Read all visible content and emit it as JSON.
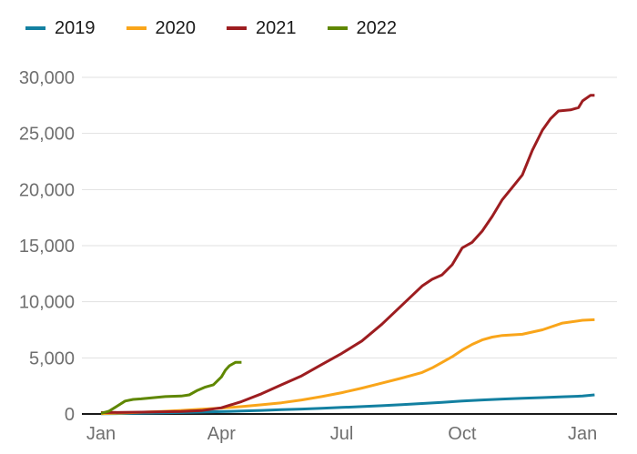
{
  "chart_data": {
    "type": "line",
    "title": "",
    "xlabel": "",
    "ylabel": "",
    "legend_position": "top-left",
    "grid": "horizontal",
    "x_domain": [
      -0.25,
      12.45
    ],
    "y_domain": [
      0,
      30000
    ],
    "x_ticks": [
      {
        "pos": 0,
        "label": "Jan"
      },
      {
        "pos": 3,
        "label": "Apr"
      },
      {
        "pos": 6,
        "label": "Jul"
      },
      {
        "pos": 9,
        "label": "Oct"
      },
      {
        "pos": 12,
        "label": "Jan"
      }
    ],
    "y_ticks": [
      {
        "value": 0,
        "label": "0"
      },
      {
        "value": 5000,
        "label": "5,000"
      },
      {
        "value": 10000,
        "label": "10,000"
      },
      {
        "value": 15000,
        "label": "15,000"
      },
      {
        "value": 20000,
        "label": "20,000"
      },
      {
        "value": 25000,
        "label": "25,000"
      },
      {
        "value": 30000,
        "label": "30,000"
      }
    ],
    "series": [
      {
        "name": "2019",
        "color": "#1380a1",
        "points": [
          [
            0,
            20
          ],
          [
            0.5,
            40
          ],
          [
            1,
            70
          ],
          [
            1.5,
            100
          ],
          [
            2,
            130
          ],
          [
            2.5,
            170
          ],
          [
            3,
            210
          ],
          [
            3.5,
            260
          ],
          [
            4,
            320
          ],
          [
            4.5,
            380
          ],
          [
            5,
            440
          ],
          [
            5.5,
            510
          ],
          [
            6,
            580
          ],
          [
            6.5,
            660
          ],
          [
            7,
            740
          ],
          [
            7.5,
            830
          ],
          [
            8,
            930
          ],
          [
            8.5,
            1040
          ],
          [
            9,
            1150
          ],
          [
            9.5,
            1250
          ],
          [
            10,
            1330
          ],
          [
            10.5,
            1400
          ],
          [
            11,
            1460
          ],
          [
            11.5,
            1530
          ],
          [
            12,
            1600
          ],
          [
            12.3,
            1700
          ]
        ]
      },
      {
        "name": "2020",
        "color": "#f9a51a",
        "points": [
          [
            0,
            30
          ],
          [
            0.5,
            80
          ],
          [
            1,
            150
          ],
          [
            1.5,
            230
          ],
          [
            2,
            320
          ],
          [
            2.5,
            420
          ],
          [
            3,
            530
          ],
          [
            3.5,
            660
          ],
          [
            4,
            820
          ],
          [
            4.5,
            1000
          ],
          [
            5,
            1250
          ],
          [
            5.5,
            1550
          ],
          [
            6,
            1900
          ],
          [
            6.5,
            2300
          ],
          [
            7,
            2750
          ],
          [
            7.5,
            3200
          ],
          [
            8,
            3700
          ],
          [
            8.25,
            4100
          ],
          [
            8.5,
            4600
          ],
          [
            8.75,
            5100
          ],
          [
            9,
            5700
          ],
          [
            9.25,
            6200
          ],
          [
            9.5,
            6600
          ],
          [
            9.75,
            6850
          ],
          [
            10,
            7000
          ],
          [
            10.5,
            7100
          ],
          [
            11,
            7500
          ],
          [
            11.5,
            8100
          ],
          [
            12,
            8350
          ],
          [
            12.3,
            8400
          ]
        ]
      },
      {
        "name": "2021",
        "color": "#9d1d20",
        "points": [
          [
            0,
            120
          ],
          [
            1,
            160
          ],
          [
            2,
            220
          ],
          [
            2.5,
            300
          ],
          [
            3,
            550
          ],
          [
            3.5,
            1100
          ],
          [
            4,
            1800
          ],
          [
            4.5,
            2600
          ],
          [
            5,
            3400
          ],
          [
            5.5,
            4400
          ],
          [
            6,
            5400
          ],
          [
            6.5,
            6500
          ],
          [
            7,
            8000
          ],
          [
            7.5,
            9700
          ],
          [
            8,
            11400
          ],
          [
            8.25,
            12000
          ],
          [
            8.5,
            12400
          ],
          [
            8.75,
            13300
          ],
          [
            9,
            14800
          ],
          [
            9.25,
            15300
          ],
          [
            9.5,
            16300
          ],
          [
            9.75,
            17600
          ],
          [
            10,
            19100
          ],
          [
            10.25,
            20200
          ],
          [
            10.5,
            21300
          ],
          [
            10.75,
            23500
          ],
          [
            11,
            25300
          ],
          [
            11.2,
            26300
          ],
          [
            11.4,
            27000
          ],
          [
            11.7,
            27100
          ],
          [
            11.9,
            27300
          ],
          [
            12,
            27900
          ],
          [
            12.2,
            28400
          ],
          [
            12.3,
            28400
          ]
        ]
      },
      {
        "name": "2022",
        "color": "#5f8700",
        "points": [
          [
            0,
            60
          ],
          [
            0.2,
            250
          ],
          [
            0.4,
            700
          ],
          [
            0.6,
            1150
          ],
          [
            0.8,
            1300
          ],
          [
            1,
            1350
          ],
          [
            1.3,
            1450
          ],
          [
            1.6,
            1550
          ],
          [
            2,
            1600
          ],
          [
            2.2,
            1700
          ],
          [
            2.4,
            2100
          ],
          [
            2.6,
            2400
          ],
          [
            2.8,
            2600
          ],
          [
            3,
            3300
          ],
          [
            3.1,
            3900
          ],
          [
            3.2,
            4300
          ],
          [
            3.35,
            4600
          ],
          [
            3.5,
            4600
          ]
        ]
      }
    ]
  }
}
